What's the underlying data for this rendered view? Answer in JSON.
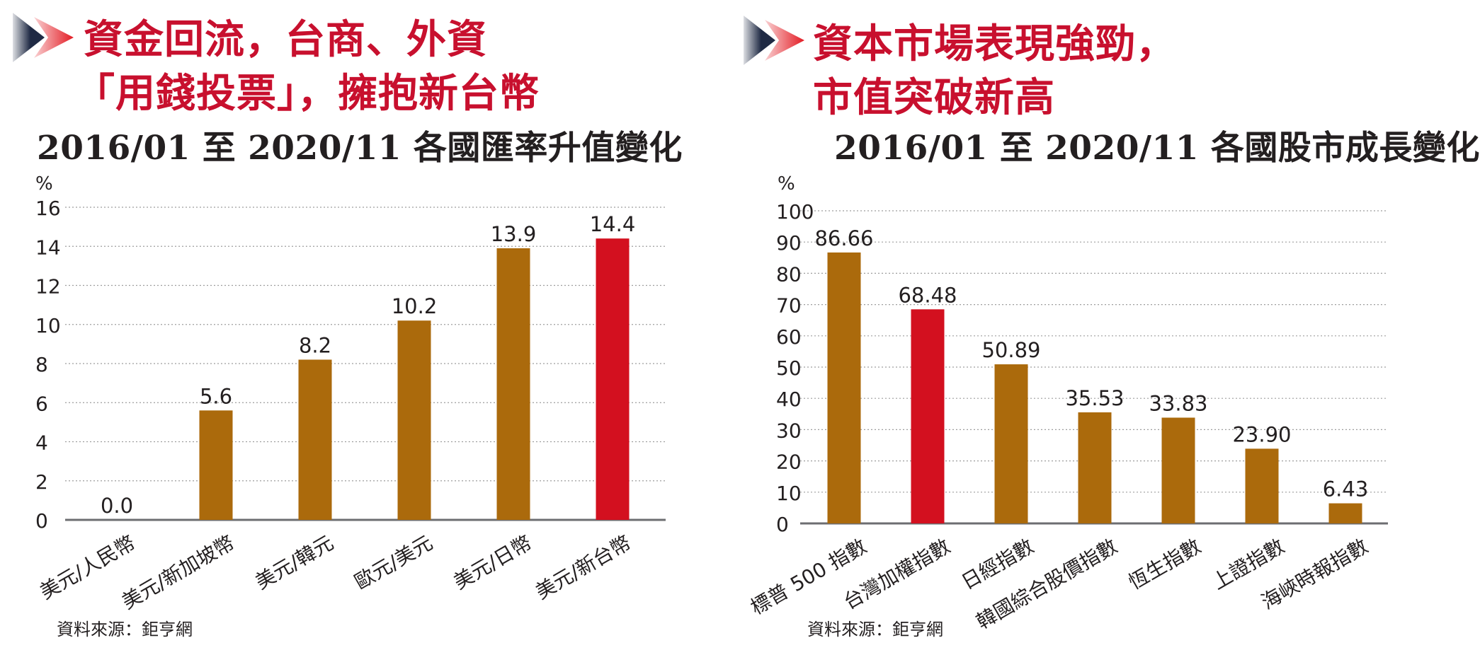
{
  "left": {
    "headline": [
      "資金回流，台商、外資",
      "「用錢投票」，擁抱新台幣"
    ],
    "subtitle": "2016/01 至 2020/11 各國匯率升值變化",
    "unit": "%",
    "source": "資料來源：鉅亨網"
  },
  "right": {
    "headline": [
      "資本市場表現強勁，",
      "市值突破新高"
    ],
    "subtitle": "2016/01 至 2020/11 各國股市成長變化",
    "unit": "%",
    "source": "資料來源：鉅亨網"
  },
  "colors": {
    "bar": "#ab6a0c",
    "highlight": "#d3101f",
    "headline": "#c8102e",
    "grid": "#9e9e9e",
    "axis": "#6d6e71",
    "arrow_start": "#1f2a44",
    "arrow_end": "#e31b23"
  },
  "chart_data": [
    {
      "type": "bar",
      "title": "2016/01 至 2020/11 各國匯率升值變化",
      "ylabel": "%",
      "ylim": [
        0,
        16
      ],
      "yticks": [
        0,
        2,
        4,
        6,
        8,
        10,
        12,
        14,
        16
      ],
      "grid": true,
      "categories": [
        "美元/人民幣",
        "美元/新加坡幣",
        "美元/韓元",
        "歐元/美元",
        "美元/日幣",
        "美元/新台幣"
      ],
      "values": [
        0.0,
        5.6,
        8.2,
        10.2,
        13.9,
        14.4
      ],
      "value_labels": [
        "0.0",
        "5.6",
        "8.2",
        "10.2",
        "13.9",
        "14.4"
      ],
      "highlight_index": 5
    },
    {
      "type": "bar",
      "title": "2016/01 至 2020/11 各國股市成長變化",
      "ylabel": "%",
      "ylim": [
        0,
        100
      ],
      "yticks": [
        0,
        10,
        20,
        30,
        40,
        50,
        60,
        70,
        80,
        90,
        100
      ],
      "grid": true,
      "categories": [
        "標普 500 指數",
        "台灣加權指數",
        "日經指數",
        "韓國綜合股價指數",
        "恆生指數",
        "上證指數",
        "海峽時報指數"
      ],
      "values": [
        86.66,
        68.48,
        50.89,
        35.53,
        33.83,
        23.9,
        6.43
      ],
      "value_labels": [
        "86.66",
        "68.48",
        "50.89",
        "35.53",
        "33.83",
        "23.90",
        "6.43"
      ],
      "highlight_index": 1
    }
  ]
}
